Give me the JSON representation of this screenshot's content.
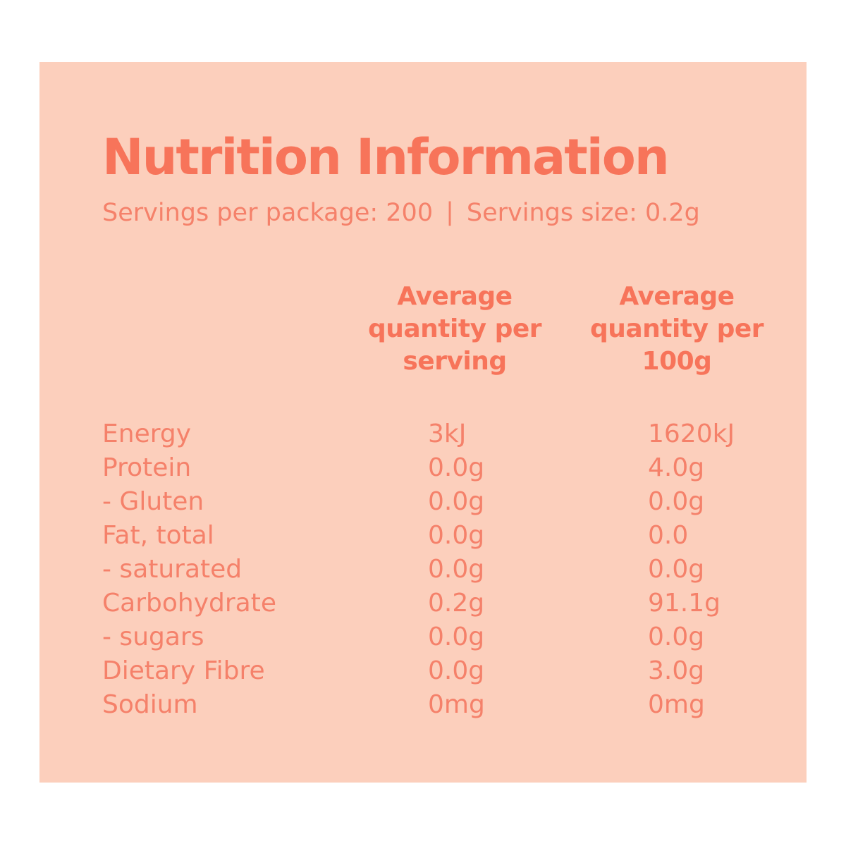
{
  "panel": {
    "title": "Nutrition Information",
    "servings_per_package": "Servings per package: 200",
    "separator": "|",
    "servings_size": "Servings size: 0.2g"
  },
  "columns": [
    {
      "label": "Average quantity per serving",
      "lines": [
        "Average",
        "quantity per",
        "serving"
      ]
    },
    {
      "label": "Average quantity per 100g",
      "lines": [
        "Average",
        "quantity per",
        "100g"
      ]
    }
  ],
  "table": {
    "rows": [
      {
        "label": "Energy",
        "per_serving": "3kJ",
        "per_100g": "1620kJ"
      },
      {
        "label": "Protein",
        "per_serving": "0.0g",
        "per_100g": "4.0g"
      },
      {
        "label": "- Gluten",
        "per_serving": "0.0g",
        "per_100g": "0.0g"
      },
      {
        "label": "Fat, total",
        "per_serving": "0.0g",
        "per_100g": "0.0"
      },
      {
        "label": "- saturated",
        "per_serving": "0.0g",
        "per_100g": "0.0g"
      },
      {
        "label": "Carbohydrate",
        "per_serving": "0.2g",
        "per_100g": "91.1g"
      },
      {
        "label": "- sugars",
        "per_serving": "0.0g",
        "per_100g": "0.0g"
      },
      {
        "label": "Dietary Fibre",
        "per_serving": "0.0g",
        "per_100g": "3.0g"
      },
      {
        "label": "Sodium",
        "per_serving": "0mg",
        "per_100g": "0mg"
      }
    ]
  },
  "colors": {
    "page_background": "#ffffff",
    "panel_background": "#fccfbc",
    "accent_text": "#f7745a",
    "body_text": "#f5816a"
  }
}
